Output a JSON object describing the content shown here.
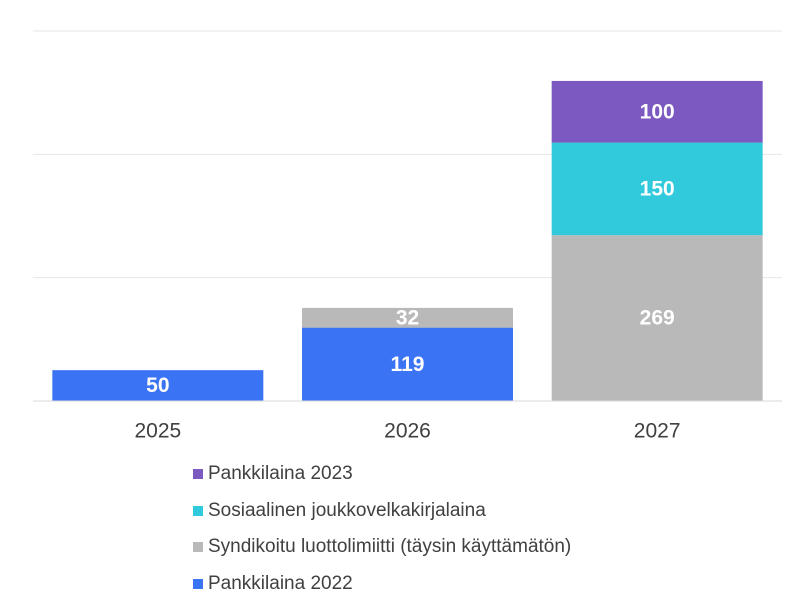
{
  "chart_data": {
    "type": "bar",
    "stacked": true,
    "categories": [
      "2025",
      "2026",
      "2027"
    ],
    "series": [
      {
        "name": "Pankkilaina 2022",
        "values": [
          50,
          119,
          0
        ],
        "color": "#3B73F5"
      },
      {
        "name": "Syndikoitu luottolimiitti (täysin käyttämätön)",
        "values": [
          0,
          32,
          269
        ],
        "color": "#B9B9B9"
      },
      {
        "name": "Sosiaalinen joukkovelkakirjalaina",
        "values": [
          0,
          0,
          150
        ],
        "color": "#31CADD"
      },
      {
        "name": "Pankkilaina 2023",
        "values": [
          0,
          0,
          100
        ],
        "color": "#7C58C1"
      }
    ],
    "ylim": [
      0,
      600
    ],
    "grid": true,
    "legend_position": "bottom",
    "legend_order": [
      "Pankkilaina 2023",
      "Sosiaalinen joukkovelkakirjalaina",
      "Syndikoitu luottolimiitti (täysin käyttämätön)",
      "Pankkilaina 2022"
    ]
  }
}
